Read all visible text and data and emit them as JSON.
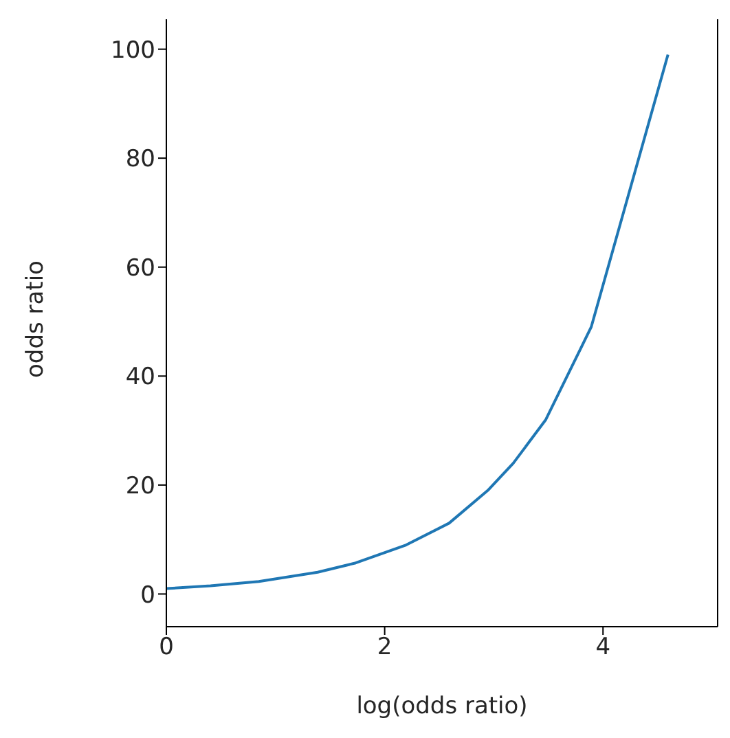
{
  "chart_data": {
    "type": "line",
    "xlabel": "log(odds ratio)",
    "ylabel": "odds ratio",
    "x": [
      0,
      0.405,
      0.847,
      1.386,
      1.735,
      2.197,
      2.59,
      2.944,
      3.178,
      3.476,
      3.892,
      4.595
    ],
    "series": [
      {
        "color": "#1f77b4",
        "values": [
          1,
          1.5,
          2.3,
          4,
          5.7,
          9,
          13,
          19,
          24,
          32,
          49,
          99
        ]
      }
    ],
    "xlim": [
      0,
      5.05
    ],
    "xticks": [
      0,
      2,
      4
    ],
    "ylim": [
      -6,
      105.5
    ],
    "yticks": [
      0,
      20,
      40,
      60,
      80,
      100
    ],
    "grid": false,
    "legend": false,
    "marker": "none",
    "line_style": "solid"
  }
}
